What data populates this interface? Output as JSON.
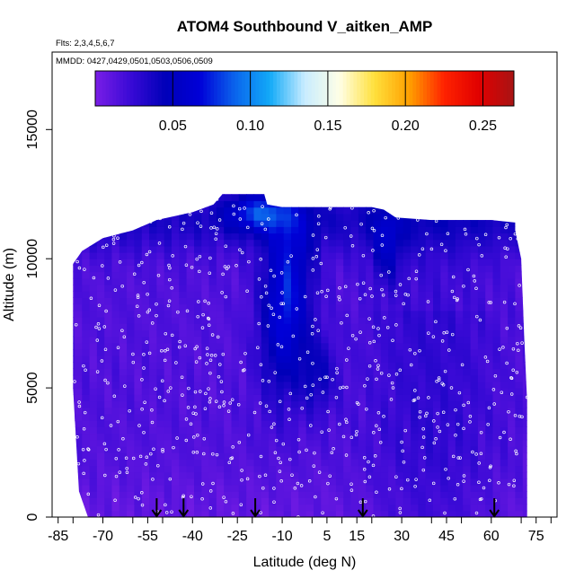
{
  "chart_data": {
    "type": "heatmap",
    "title": "ATOM4 Southbound V_aitken_AMP",
    "annotations": [
      "Flts: 2,3,4,5,6,7",
      "MMDD: 0427,0429,0501,0503,0506,0509"
    ],
    "xlabel": "Latitude (deg N)",
    "ylabel": "Altitude (m)",
    "xlim": [
      -87,
      82
    ],
    "ylim": [
      0,
      18000
    ],
    "x_ticks": [
      -85,
      -70,
      -55,
      -40,
      -25,
      -10,
      5,
      15,
      30,
      45,
      60,
      75
    ],
    "y_ticks": [
      0,
      5000,
      10000,
      15000
    ],
    "colorbar": {
      "ticks": [
        0.05,
        0.1,
        0.15,
        0.2,
        0.25
      ],
      "tick_labels": [
        "0.05",
        "0.10",
        "0.15",
        "0.20",
        "0.25"
      ],
      "range": [
        0.0,
        0.27
      ],
      "colors": [
        "#7a1ee6",
        "#3a0ad6",
        "#0000b8",
        "#0000d8",
        "#0a64ec",
        "#12aaf8",
        "#c8ecff",
        "#ffffe6",
        "#ffe03c",
        "#ffa000",
        "#ff2200",
        "#e00000",
        "#a81414"
      ]
    },
    "arrow_latitudes": [
      -52,
      -43,
      -19,
      17,
      61
    ],
    "legend": "top (horizontal colorbar)"
  }
}
